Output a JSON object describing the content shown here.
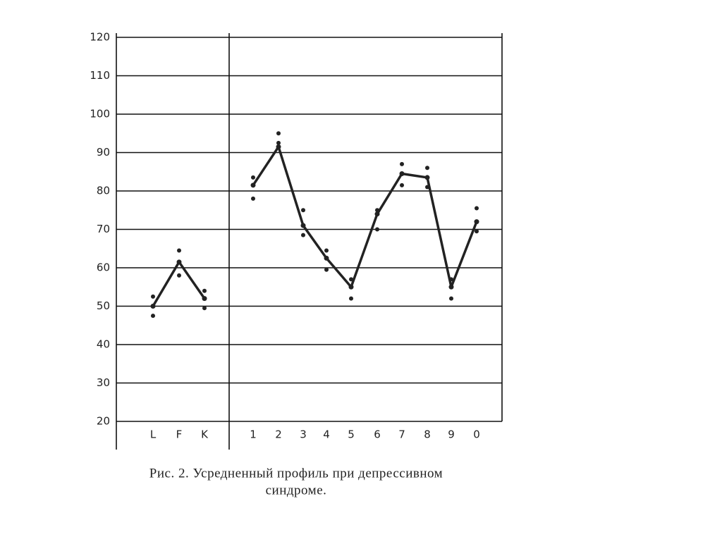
{
  "chart_data": {
    "type": "line",
    "categories": [
      "L",
      "F",
      "K",
      null,
      "1",
      "2",
      "3",
      "4",
      "5",
      "6",
      "7",
      "8",
      "9",
      "0"
    ],
    "series": [
      {
        "color": "#222222",
        "values": [
          50,
          61.5,
          52,
          null,
          81.5,
          91.5,
          71,
          62.5,
          55,
          74,
          84.5,
          83.5,
          55,
          72
        ]
      },
      {
        "color": "#222222",
        "values": [
          52.5,
          64.5,
          54,
          null,
          83.5,
          95,
          75,
          64.5,
          57,
          75,
          87,
          86,
          57,
          75.5
        ]
      },
      {
        "color": "#222222",
        "values": [
          47.5,
          58,
          49.5,
          null,
          78,
          92.5,
          68.5,
          59.5,
          52,
          70,
          81.5,
          81,
          52,
          69.5
        ]
      }
    ],
    "ylim": [
      20,
      120
    ],
    "yticks": [
      20,
      30,
      40,
      50,
      60,
      70,
      80,
      90,
      100,
      110,
      120
    ],
    "grid": true,
    "caption": [
      "Рис. 2. Усредненный профиль при депрессивном",
      "синдроме."
    ]
  }
}
